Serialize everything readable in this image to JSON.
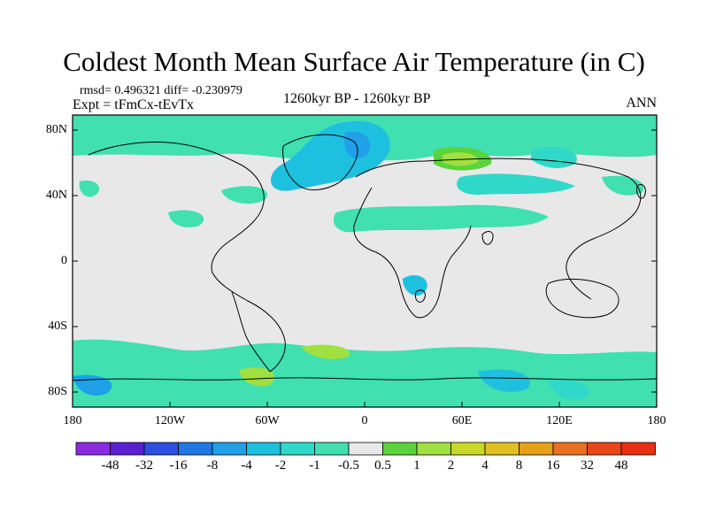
{
  "header": {
    "title": "Coldest Month Mean Surface Air Temperature (in C)",
    "stats": "rmsd= 0.496321 diff= -0.230979",
    "experiment": "Expt = tFmCx-tEvTx",
    "period": "1260kyr BP - 1260kyr BP",
    "season": "ANN"
  },
  "axes": {
    "lat_ticks": [
      "80N",
      "40N",
      "0",
      "40S",
      "80S"
    ],
    "lon_ticks": [
      "180",
      "120W",
      "60W",
      "0",
      "60E",
      "120E",
      "180"
    ]
  },
  "colorbar": {
    "labels": [
      "-48",
      "-32",
      "-16",
      "-8",
      "-4",
      "-2",
      "-1",
      "-0.5",
      "0.5",
      "1",
      "2",
      "4",
      "8",
      "16",
      "32",
      "48"
    ],
    "colors": [
      "#8a2be2",
      "#5a1fd1",
      "#2e4fe0",
      "#1e78e6",
      "#1fa0e8",
      "#1ec0e0",
      "#2fd8c8",
      "#40e0b0",
      "#e8e8e8",
      "#5ad43a",
      "#a0e040",
      "#c8d82a",
      "#e0c020",
      "#e8a018",
      "#e87020",
      "#e84818",
      "#e83010"
    ]
  },
  "map_colors": {
    "ocean_neutral": "#e8e8e8",
    "cool_light": "#40e0b0",
    "cool_mid": "#2fd8c8",
    "cool_strong": "#1ec0e0",
    "warm_light": "#5ad43a",
    "warm_mid": "#a0e040"
  }
}
